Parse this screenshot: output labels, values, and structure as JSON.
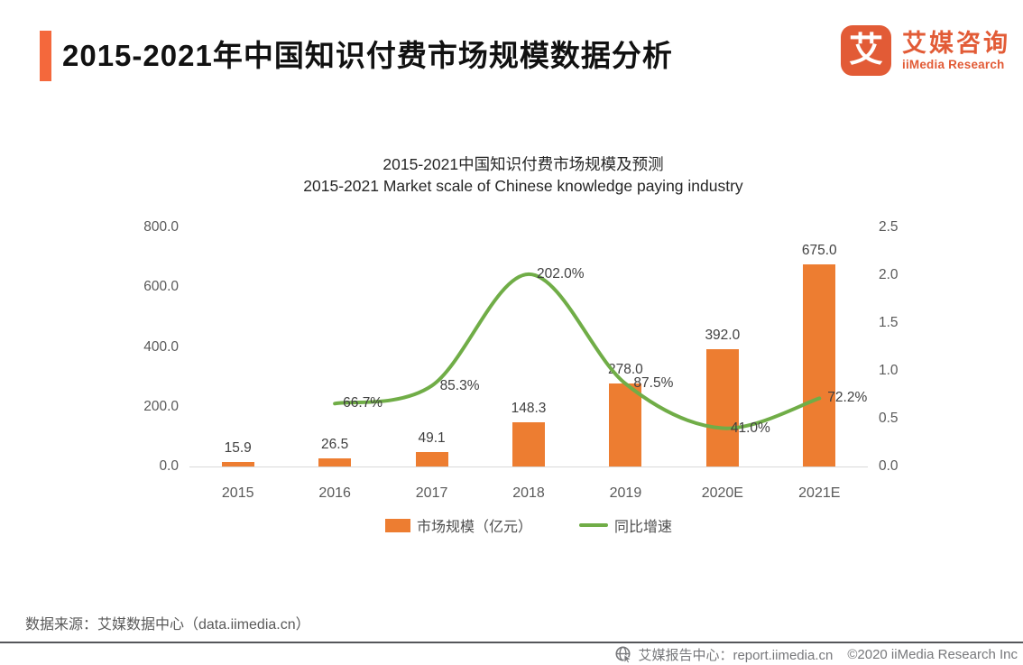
{
  "header": {
    "title": "2015-2021年中国知识付费市场规模数据分析",
    "logo": {
      "icon_char": "艾",
      "brand_cn": "艾媒咨询",
      "brand_en": "iiMedia Research"
    }
  },
  "chart_data": {
    "type": "combo-bar-line",
    "title_cn": "2015-2021中国知识付费市场规模及预测",
    "title_en": "2015-2021 Market scale of Chinese knowledge paying industry",
    "categories": [
      "2015",
      "2016",
      "2017",
      "2018",
      "2019",
      "2020E",
      "2021E"
    ],
    "series": [
      {
        "name": "市场规模（亿元）",
        "type": "bar",
        "axis": "left",
        "color": "#ED7D31",
        "values": [
          15.9,
          26.5,
          49.1,
          148.3,
          278.0,
          392.0,
          675.0
        ]
      },
      {
        "name": "同比增速",
        "type": "line",
        "axis": "right",
        "color": "#70AD47",
        "values_percent": [
          null,
          66.7,
          85.3,
          202.0,
          87.5,
          41.0,
          72.2
        ]
      }
    ],
    "left_axis": {
      "min": 0,
      "max": 800,
      "ticks": [
        "800.0",
        "600.0",
        "400.0",
        "200.0",
        "0.0"
      ]
    },
    "right_axis": {
      "min": 0,
      "max": 2.5,
      "ticks": [
        "2.5",
        "2.0",
        "1.5",
        "1.0",
        "0.5",
        "0.0"
      ]
    },
    "grid": false,
    "legend_position": "bottom"
  },
  "legend": {
    "bar_label": "市场规模（亿元）",
    "line_label": "同比增速"
  },
  "source": "数据来源：艾媒数据中心（data.iimedia.cn）",
  "footer": {
    "site": "艾媒报告中心：report.iimedia.cn",
    "copyright": "©2020  iiMedia Research Inc"
  },
  "colors": {
    "accent": "#F4683C",
    "brand": "#E25B36",
    "bar": "#ED7D31",
    "line": "#70AD47"
  }
}
